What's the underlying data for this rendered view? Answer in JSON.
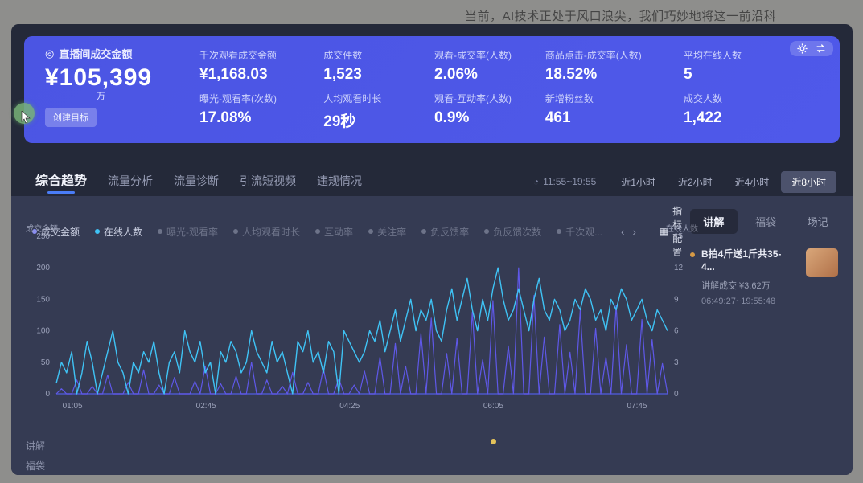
{
  "page": {
    "caption": "当前，AI技术正处于风口浪尖，我们巧妙地将这一前沿科"
  },
  "banner": {
    "primary": {
      "label": "直播间成交金额",
      "value": "¥105,399",
      "unit": "万",
      "button": "创建目标"
    },
    "metrics": [
      {
        "label": "千次观看成交金额",
        "value": "¥1,168.03"
      },
      {
        "label": "成交件数",
        "value": "1,523"
      },
      {
        "label": "观看-成交率(人数)",
        "value": "2.06%"
      },
      {
        "label": "商品点击-成交率(人数)",
        "value": "18.52%"
      },
      {
        "label": "平均在线人数",
        "value": "5"
      },
      {
        "label": "曝光-观看率(次数)",
        "value": "17.08%"
      },
      {
        "label": "人均观看时长",
        "value": "29秒"
      },
      {
        "label": "观看-互动率(人数)",
        "value": "0.9%"
      },
      {
        "label": "新增粉丝数",
        "value": "461"
      },
      {
        "label": "成交人数",
        "value": "1,422"
      }
    ]
  },
  "tabs": [
    {
      "label": "综合趋势",
      "active": true
    },
    {
      "label": "流量分析",
      "active": false
    },
    {
      "label": "流量诊断",
      "active": false
    },
    {
      "label": "引流短视频",
      "active": false
    },
    {
      "label": "违规情况",
      "active": false
    }
  ],
  "time": {
    "range": "11:55~19:55",
    "buttons": [
      {
        "label": "近1小时",
        "active": false
      },
      {
        "label": "近2小时",
        "active": false
      },
      {
        "label": "近4小时",
        "active": false
      },
      {
        "label": "近8小时",
        "active": true
      }
    ]
  },
  "legend": {
    "items": [
      {
        "label": "成交金额",
        "color": "#8a8df5",
        "active": true
      },
      {
        "label": "在线人数",
        "color": "#3fc3f5",
        "active": true
      },
      {
        "label": "曝光-观看率",
        "color": "#6d7389",
        "active": false
      },
      {
        "label": "人均观看时长",
        "color": "#6d7389",
        "active": false
      },
      {
        "label": "互动率",
        "color": "#6d7389",
        "active": false
      },
      {
        "label": "关注率",
        "color": "#6d7389",
        "active": false
      },
      {
        "label": "负反馈率",
        "color": "#6d7389",
        "active": false
      },
      {
        "label": "负反馈次数",
        "color": "#6d7389",
        "active": false
      },
      {
        "label": "千次观...",
        "color": "#6d7389",
        "active": false
      }
    ],
    "pager_prev": "‹",
    "pager_next": "›",
    "config_label": "指标配置"
  },
  "chart_data": {
    "type": "line",
    "title": "综合趋势",
    "x_ticks": [
      "01:05",
      "02:45",
      "04:25",
      "06:05",
      "07:45"
    ],
    "y_left": {
      "label": "成交金额",
      "ticks": [
        0,
        50,
        100,
        150,
        200,
        250
      ],
      "max": 250
    },
    "y_right": {
      "label": "在线人数",
      "ticks": [
        0,
        3,
        6,
        9,
        12,
        15
      ],
      "max": 15
    },
    "legend_position": "top",
    "grid": false,
    "series": [
      {
        "name": "成交金额",
        "axis": "left",
        "color": "#5f58e8",
        "values": [
          0,
          8,
          0,
          0,
          22,
          0,
          0,
          12,
          0,
          0,
          30,
          0,
          0,
          0,
          18,
          0,
          0,
          38,
          0,
          0,
          14,
          0,
          0,
          26,
          0,
          0,
          0,
          20,
          0,
          44,
          0,
          0,
          16,
          0,
          0,
          28,
          0,
          0,
          50,
          0,
          0,
          22,
          0,
          0,
          12,
          0,
          34,
          0,
          0,
          18,
          0,
          0,
          40,
          0,
          0,
          24,
          0,
          0,
          14,
          0,
          36,
          0,
          0,
          58,
          0,
          0,
          80,
          0,
          44,
          0,
          0,
          96,
          0,
          120,
          0,
          0,
          64,
          0,
          88,
          0,
          0,
          130,
          0,
          54,
          0,
          148,
          0,
          0,
          76,
          0,
          200,
          0,
          0,
          156,
          0,
          90,
          0,
          0,
          110,
          0,
          66,
          0,
          132,
          0,
          0,
          104,
          0,
          58,
          0,
          140,
          0,
          78,
          0,
          0,
          118,
          0,
          86,
          0,
          48,
          0
        ]
      },
      {
        "name": "在线人数",
        "axis": "right",
        "color": "#3fc3f5",
        "values": [
          1,
          3,
          2,
          4,
          0,
          2,
          5,
          3,
          0,
          2,
          4,
          6,
          3,
          2,
          0,
          3,
          2,
          4,
          3,
          5,
          2,
          0,
          3,
          4,
          2,
          6,
          4,
          3,
          5,
          2,
          3,
          0,
          4,
          3,
          5,
          4,
          2,
          3,
          6,
          4,
          3,
          2,
          5,
          3,
          4,
          2,
          0,
          5,
          4,
          6,
          3,
          4,
          2,
          5,
          4,
          0,
          6,
          5,
          4,
          3,
          4,
          6,
          5,
          7,
          4,
          6,
          8,
          5,
          7,
          9,
          6,
          8,
          7,
          9,
          6,
          5,
          8,
          10,
          7,
          9,
          11,
          8,
          6,
          9,
          7,
          10,
          12,
          9,
          7,
          8,
          10,
          8,
          6,
          9,
          11,
          8,
          7,
          9,
          8,
          6,
          7,
          9,
          8,
          10,
          9,
          7,
          8,
          6,
          9,
          8,
          10,
          9,
          7,
          8,
          9,
          7,
          6,
          8,
          7,
          6
        ]
      }
    ]
  },
  "timeline_rows": [
    {
      "label": "讲解",
      "markers": [
        {
          "frac": 0.71,
          "color": "#e3c25a"
        }
      ]
    },
    {
      "label": "福袋",
      "markers": []
    }
  ],
  "side_panel": {
    "tabs": [
      {
        "label": "讲解",
        "active": true
      },
      {
        "label": "福袋",
        "active": false
      },
      {
        "label": "场记",
        "active": false
      }
    ],
    "items": [
      {
        "title": "B拍4斤送1斤共35-4...",
        "sub": "讲解成交 ¥3.62万",
        "time": "06:49:27~19:55:48",
        "marker_color": "#d79a45"
      }
    ]
  }
}
